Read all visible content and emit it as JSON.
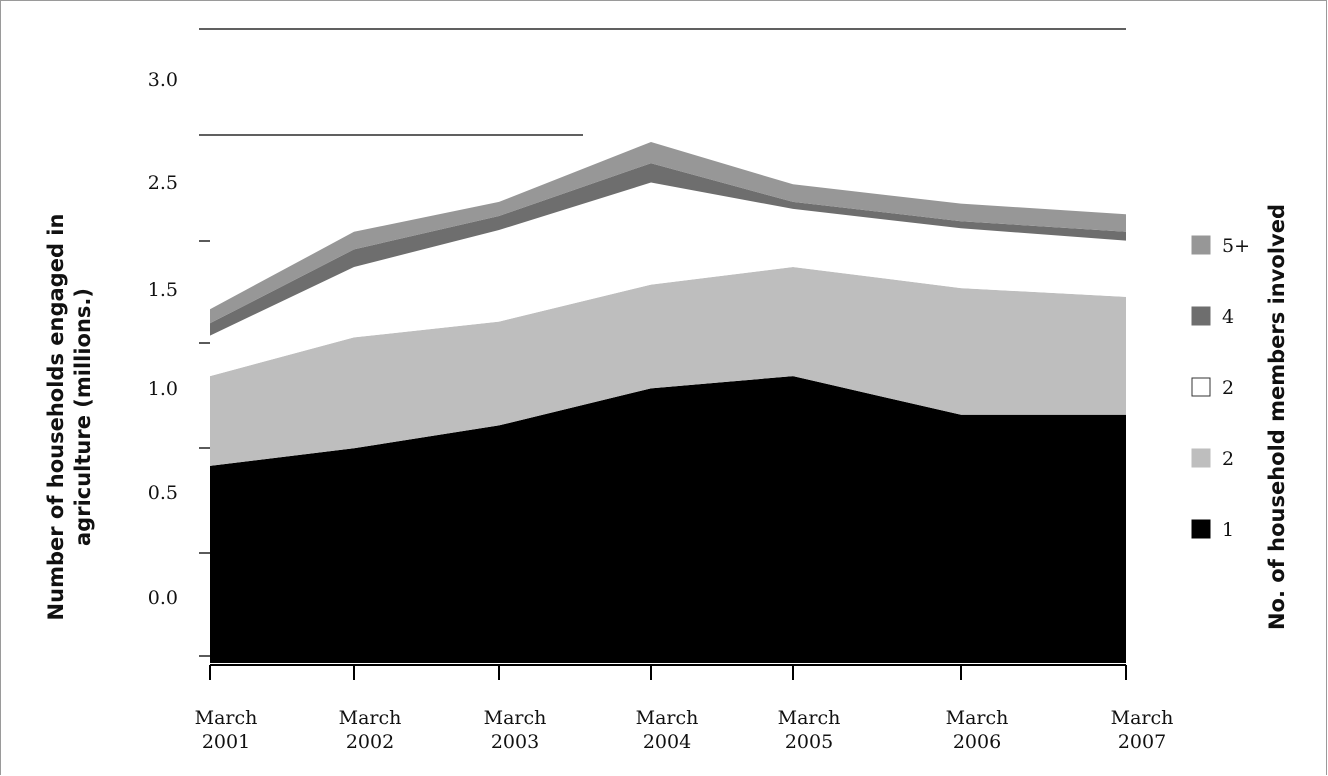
{
  "chart_data": {
    "type": "area",
    "stacked": true,
    "x": [
      "March 2001",
      "March 2002",
      "March 2003",
      "March 2004",
      "March 2005",
      "March 2006",
      "March 2007"
    ],
    "x_ticks": [
      {
        "line1": "March",
        "line2": "2001"
      },
      {
        "line1": "March",
        "line2": "2002"
      },
      {
        "line1": "March",
        "line2": "2003"
      },
      {
        "line1": "March",
        "line2": "2004"
      },
      {
        "line1": "March",
        "line2": "2005"
      },
      {
        "line1": "March",
        "line2": "2006"
      },
      {
        "line1": "March",
        "line2": "2007"
      }
    ],
    "y_ticks": [
      "0.0",
      "0.5",
      "1.0",
      "1.5",
      "2.5",
      "3.0"
    ],
    "ylabel_lines": [
      "Number of households engaged in",
      "agriculture (millions.)"
    ],
    "legend_title": "No. of household members involved",
    "legend_position": "right",
    "series": [
      {
        "name": "1",
        "color": "#000000",
        "values": [
          1.12,
          1.22,
          1.35,
          1.56,
          1.63,
          1.41,
          1.41
        ]
      },
      {
        "name": "2",
        "color": "#bebebe",
        "values": [
          0.51,
          0.63,
          0.59,
          0.59,
          0.62,
          0.72,
          0.67
        ]
      },
      {
        "name": "2",
        "color": "#ffffff",
        "values": [
          0.23,
          0.4,
          0.52,
          0.58,
          0.33,
          0.34,
          0.32
        ]
      },
      {
        "name": "4",
        "color": "#6e6e6e",
        "values": [
          0.07,
          0.1,
          0.08,
          0.11,
          0.04,
          0.04,
          0.05
        ]
      },
      {
        "name": "5+",
        "color": "#979797",
        "values": [
          0.08,
          0.1,
          0.08,
          0.12,
          0.1,
          0.1,
          0.1
        ]
      }
    ]
  }
}
